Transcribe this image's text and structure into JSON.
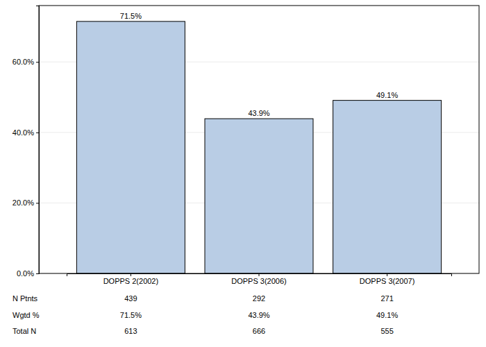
{
  "chart_data": {
    "type": "bar",
    "categories": [
      "DOPPS 2(2002)",
      "DOPPS 3(2006)",
      "DOPPS 3(2007)"
    ],
    "values": [
      71.5,
      43.9,
      49.1
    ],
    "value_labels": [
      "71.5%",
      "43.9%",
      "49.1%"
    ],
    "data_labels": true,
    "color": "#b9cde5",
    "ylim": [
      0,
      76
    ],
    "yticks": [
      {
        "value": 0,
        "label": "0.0%"
      },
      {
        "value": 20,
        "label": "20.0%"
      },
      {
        "value": 40,
        "label": "40.0%"
      },
      {
        "value": 60,
        "label": "60.0%"
      }
    ],
    "grid": true,
    "table": {
      "rows": [
        {
          "label": "N Ptnts",
          "cells": [
            "439",
            "292",
            "271"
          ]
        },
        {
          "label": "Wgtd %",
          "cells": [
            "71.5%",
            "43.9%",
            "49.1%"
          ]
        },
        {
          "label": "Total N",
          "cells": [
            "613",
            "666",
            "555"
          ]
        }
      ]
    }
  }
}
